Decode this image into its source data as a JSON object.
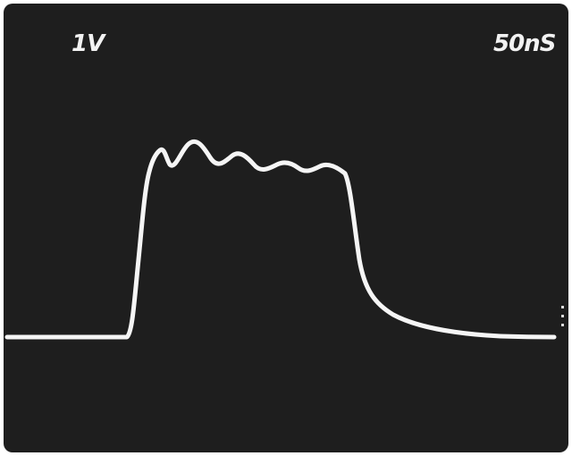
{
  "readouts": {
    "volts_per_div": "1V",
    "time_per_div": "50nS"
  },
  "colors": {
    "screen": "#1e1e1e",
    "trace": "#f5f5f5",
    "text": "#f2f2f2",
    "border": "#ffffff"
  },
  "icons": {
    "trigger_marker": "trigger-level-marker"
  }
}
